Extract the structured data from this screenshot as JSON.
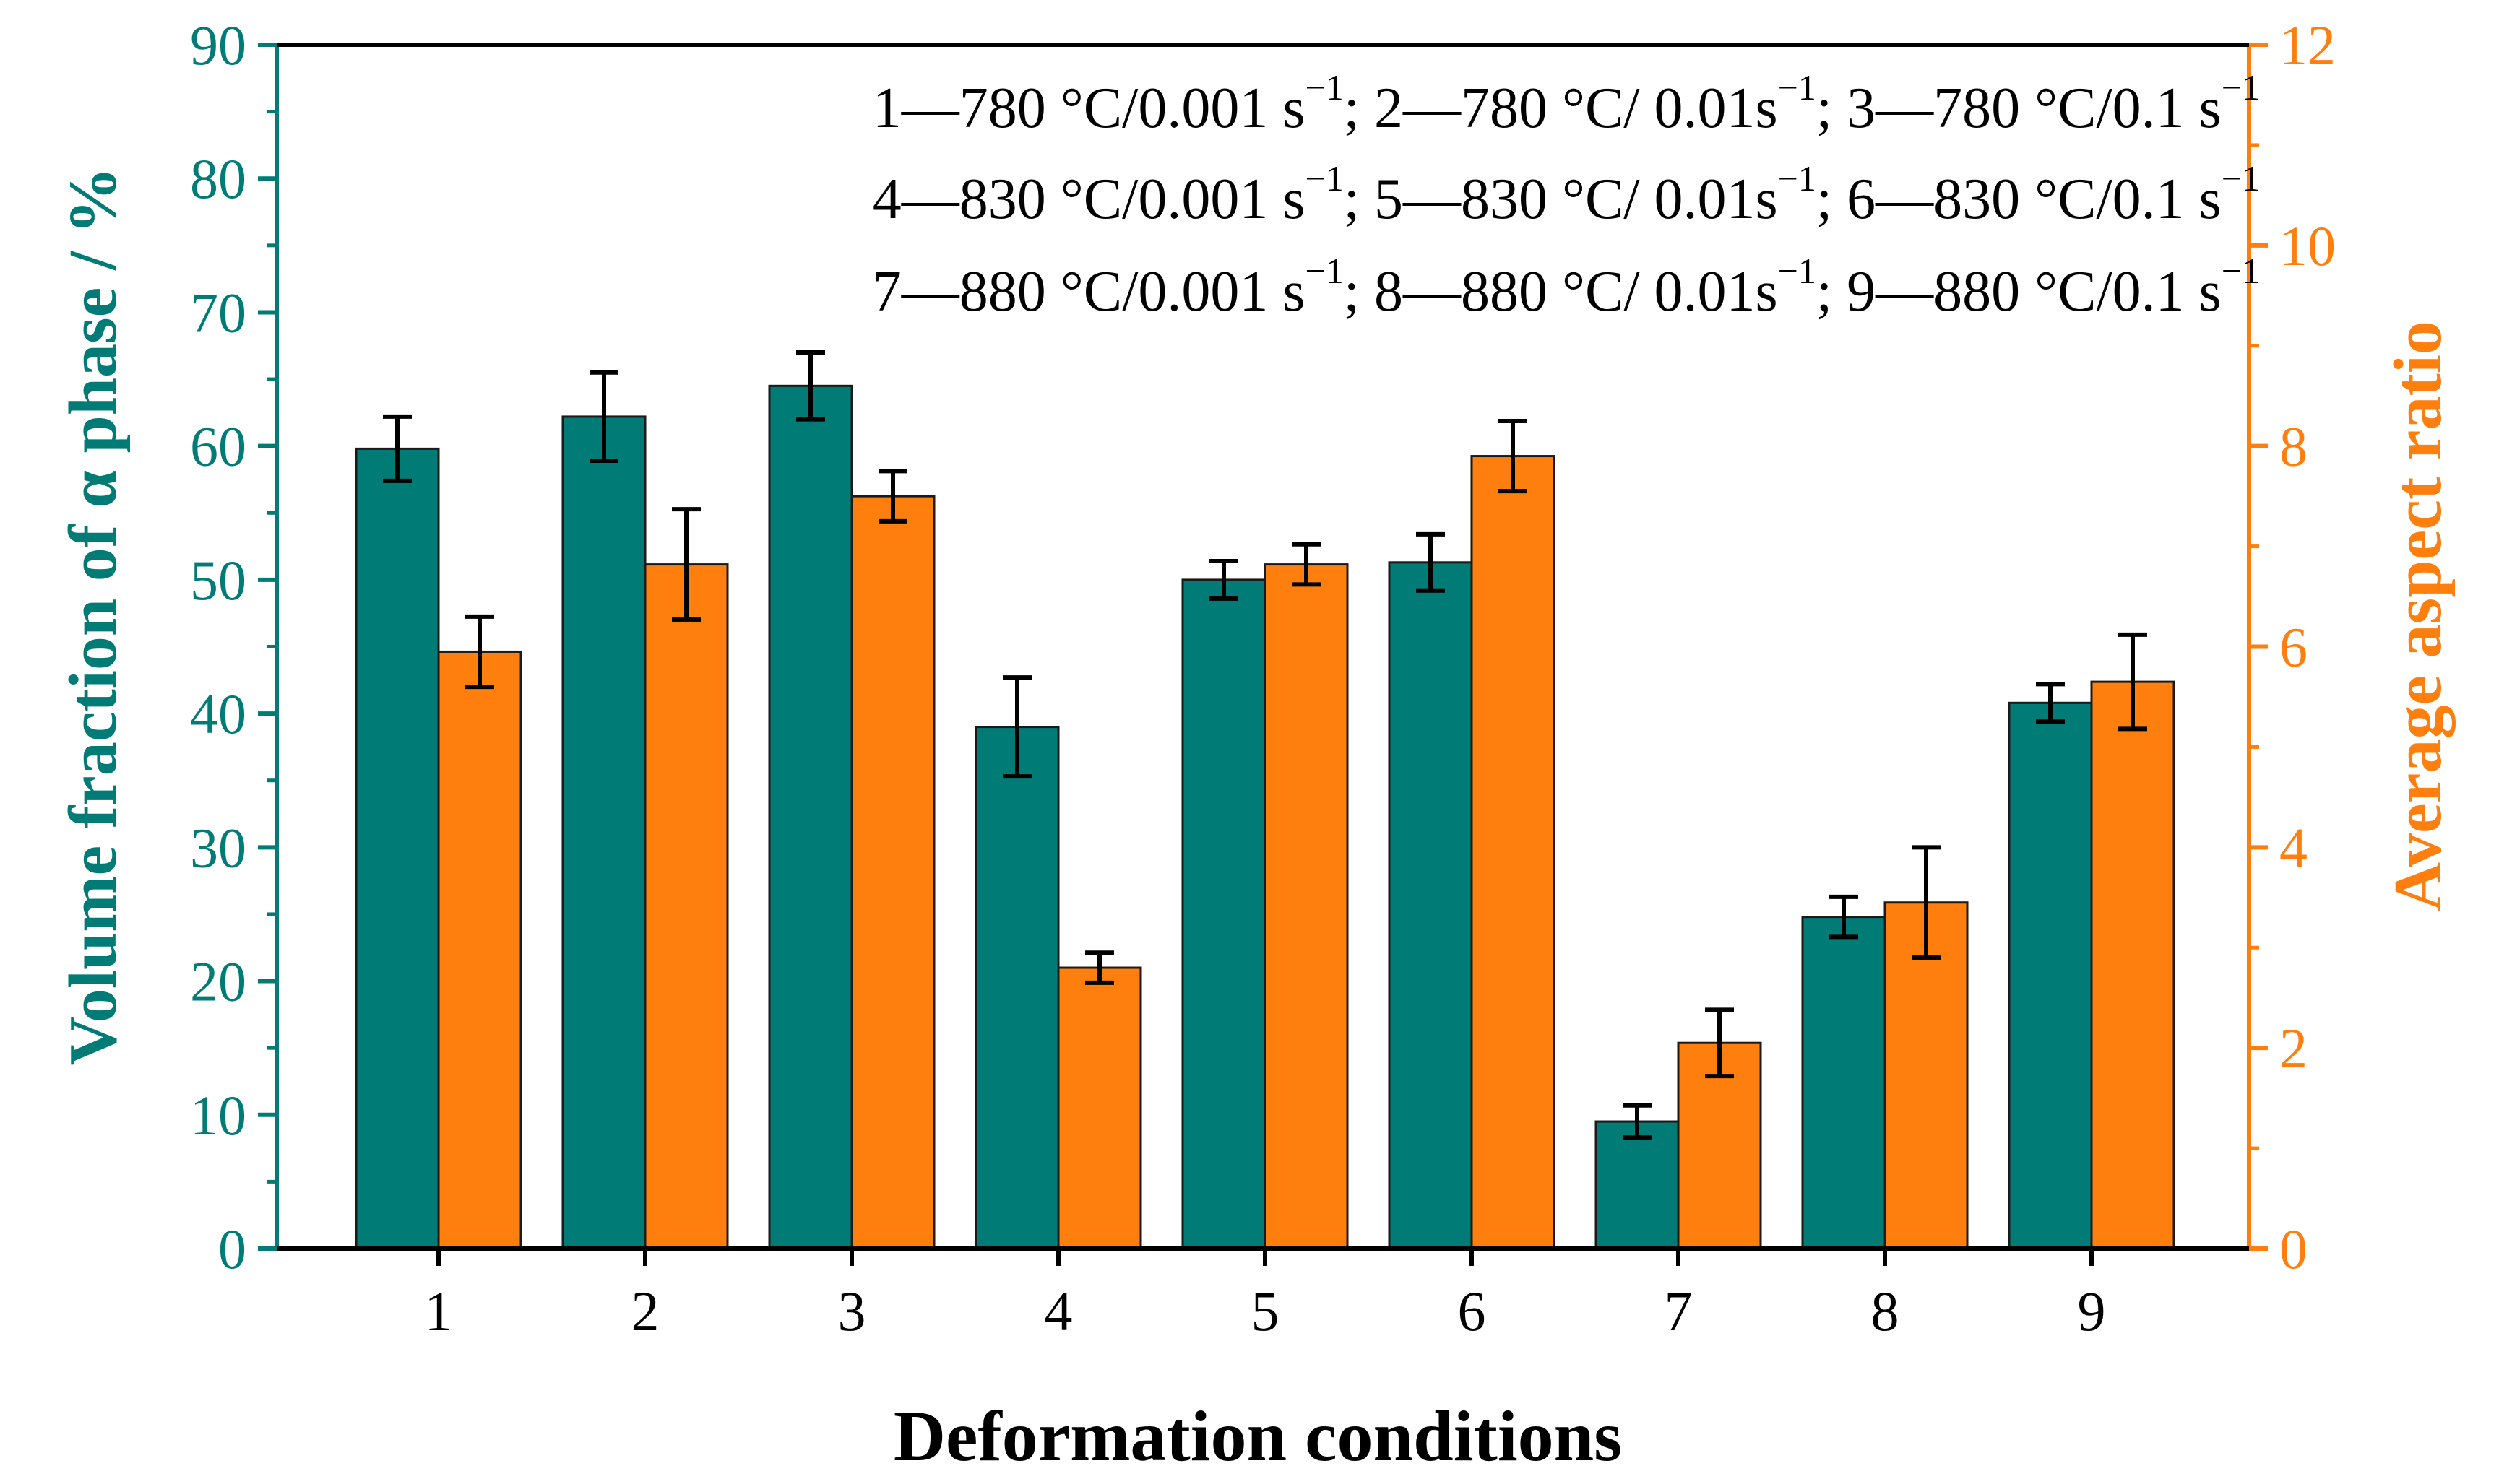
{
  "chart_data": {
    "type": "bar",
    "categories": [
      "1",
      "2",
      "3",
      "4",
      "5",
      "6",
      "7",
      "8",
      "9"
    ],
    "xlabel": "Deformation conditions",
    "ylabel": "Volume fraction of α phase / %",
    "y2label": "Average aspect ratio",
    "ylim": [
      0,
      90
    ],
    "y2lim": [
      0,
      12
    ],
    "yticks": [
      "0",
      "10",
      "20",
      "30",
      "40",
      "50",
      "60",
      "70",
      "80",
      "90"
    ],
    "y2ticks": [
      "0",
      "2",
      "4",
      "6",
      "8",
      "10",
      "12"
    ],
    "series": [
      {
        "name": "Volume fraction of α phase",
        "axis": "left",
        "color": "#007b76",
        "values": [
          59.8,
          62.2,
          64.5,
          39.0,
          50.0,
          51.3,
          9.5,
          24.8,
          40.8
        ],
        "errors": [
          2.4,
          3.3,
          2.5,
          3.7,
          1.4,
          2.1,
          1.2,
          1.5,
          1.4
        ]
      },
      {
        "name": "Average aspect ratio",
        "axis": "right",
        "color": "#ff7f0e",
        "values": [
          5.95,
          6.82,
          7.5,
          2.8,
          6.82,
          7.9,
          2.05,
          3.45,
          5.65
        ],
        "errors": [
          0.35,
          0.55,
          0.25,
          0.15,
          0.2,
          0.35,
          0.33,
          0.55,
          0.47
        ]
      }
    ],
    "legend_position": "top-right",
    "annotation_lines": [
      [
        {
          "t": "1—780 °C/0.001 s"
        },
        {
          "t": "−1",
          "sup": true
        },
        {
          "t": "; 2—780 °C/ 0.01s"
        },
        {
          "t": "−1",
          "sup": true
        },
        {
          "t": "; 3—780 °C/0.1 s"
        },
        {
          "t": "−1",
          "sup": true
        }
      ],
      [
        {
          "t": "4—830 °C/0.001 s"
        },
        {
          "t": "−1",
          "sup": true
        },
        {
          "t": "; 5—830 °C/ 0.01s"
        },
        {
          "t": "−1",
          "sup": true
        },
        {
          "t": "; 6—830 °C/0.1 s"
        },
        {
          "t": "−1",
          "sup": true
        }
      ],
      [
        {
          "t": "7—880 °C/0.001 s"
        },
        {
          "t": "−1",
          "sup": true
        },
        {
          "t": "; 8—880 °C/ 0.01s"
        },
        {
          "t": "−1",
          "sup": true
        },
        {
          "t": "; 9—880 °C/0.1 s"
        },
        {
          "t": "−1",
          "sup": true
        }
      ]
    ]
  },
  "colors": {
    "left_axis": "#007b76",
    "right_axis": "#ff7f0e",
    "axis_black": "#000000"
  }
}
